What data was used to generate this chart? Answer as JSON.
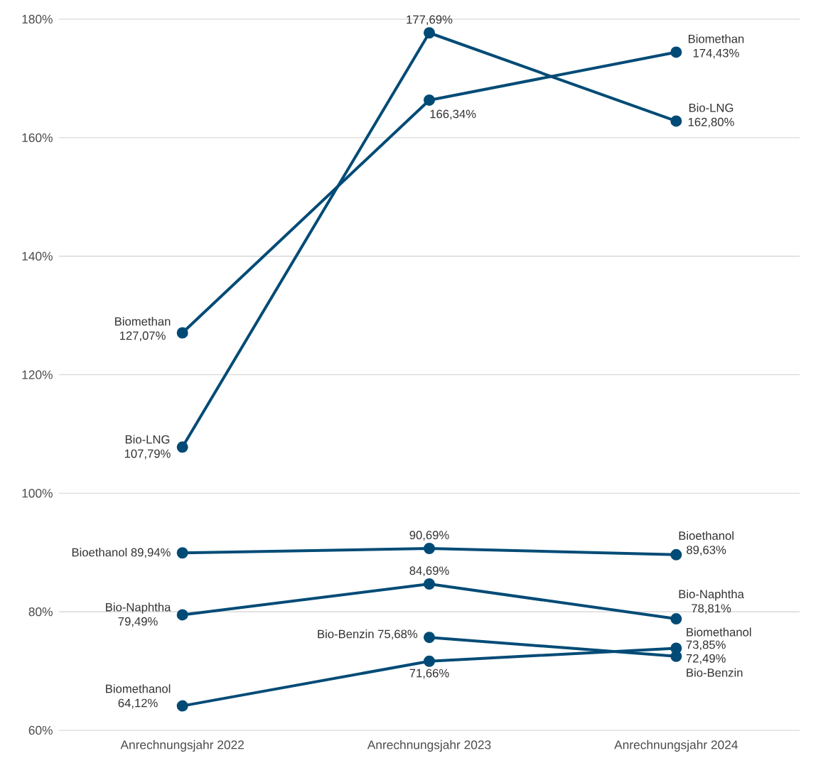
{
  "chart_data": {
    "type": "line",
    "categories": [
      "Anrechnungsjahr 2022",
      "Anrechnungsjahr 2023",
      "Anrechnungsjahr 2024"
    ],
    "ylim": [
      60,
      180
    ],
    "yticks": [
      {
        "value": 60,
        "label": "60%"
      },
      {
        "value": 80,
        "label": "80%"
      },
      {
        "value": 100,
        "label": "100%"
      },
      {
        "value": 120,
        "label": "120%"
      },
      {
        "value": 140,
        "label": "140%"
      },
      {
        "value": 160,
        "label": "160%"
      },
      {
        "value": 180,
        "label": "180%"
      }
    ],
    "grid": "y",
    "marker": "circle",
    "series": [
      {
        "name": "Biomethan",
        "color": "#004b76",
        "values": [
          127.07,
          166.34,
          174.43
        ],
        "value_labels": [
          "127,07%",
          "166,34%",
          "174,43%"
        ]
      },
      {
        "name": "Bio-LNG",
        "color": "#004b76",
        "values": [
          107.79,
          177.69,
          162.8
        ],
        "value_labels": [
          "107,79%",
          "177,69%",
          "162,80%"
        ]
      },
      {
        "name": "Bioethanol",
        "color": "#004b76",
        "values": [
          89.94,
          90.69,
          89.63
        ],
        "value_labels": [
          "89,94%",
          "90,69%",
          "89,63%"
        ]
      },
      {
        "name": "Bio-Naphtha",
        "color": "#004b76",
        "values": [
          79.49,
          84.69,
          78.81
        ],
        "value_labels": [
          "79,49%",
          "84,69%",
          "78,81%"
        ]
      },
      {
        "name": "Bio-Benzin",
        "color": "#004b76",
        "values": [
          null,
          75.68,
          72.49
        ],
        "value_labels": [
          null,
          "75,68%",
          "72,49%"
        ]
      },
      {
        "name": "Biomethanol",
        "color": "#004b76",
        "values": [
          64.12,
          71.66,
          73.85
        ],
        "value_labels": [
          "64,12%",
          "71,66%",
          "73,85%"
        ]
      }
    ]
  }
}
